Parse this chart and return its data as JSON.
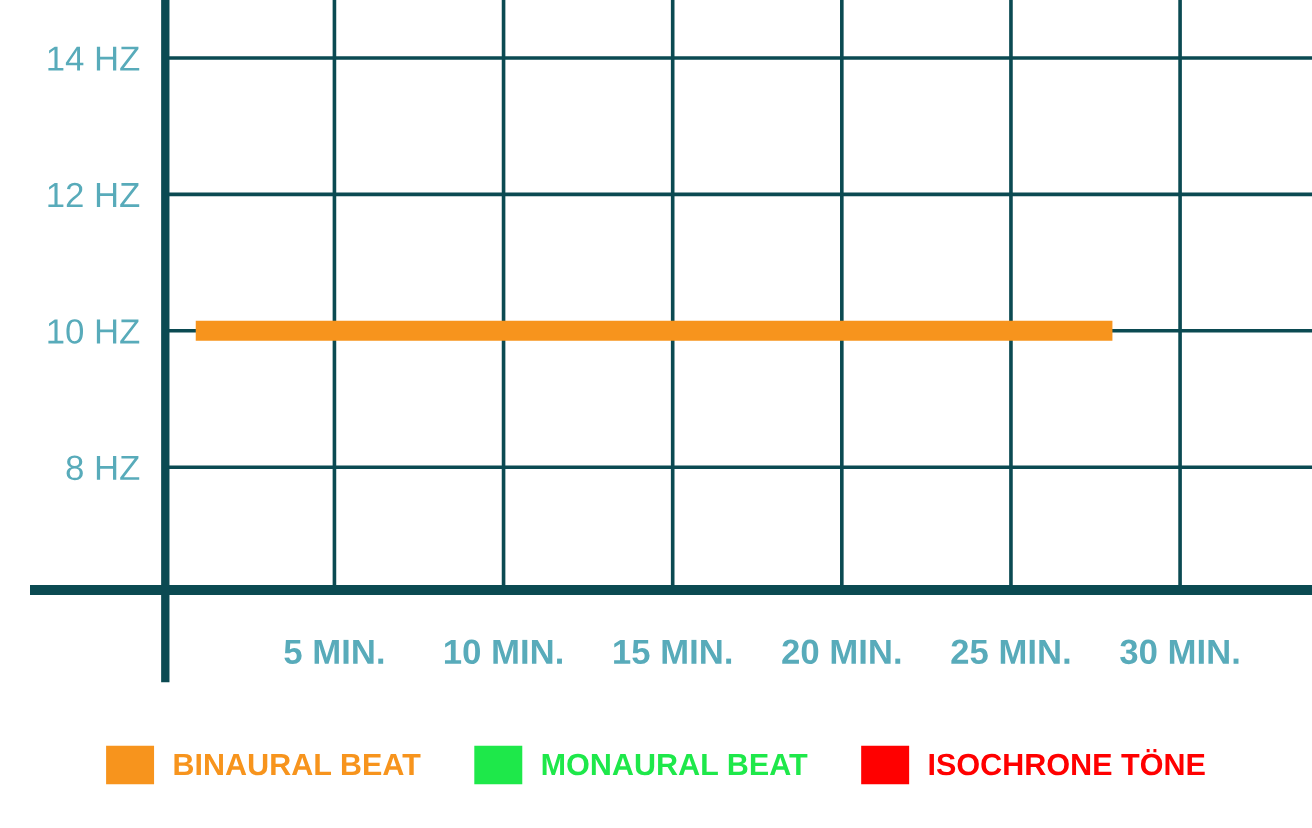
{
  "chart_data": {
    "type": "line",
    "xlim": [
      -4,
      33.9
    ],
    "ylim": [
      6.2,
      14.85
    ],
    "xticks": [
      {
        "value": 5,
        "label": "5 MIN."
      },
      {
        "value": 10,
        "label": "10 MIN."
      },
      {
        "value": 15,
        "label": "15 MIN."
      },
      {
        "value": 20,
        "label": "20 MIN."
      },
      {
        "value": 25,
        "label": "25 MIN."
      },
      {
        "value": 30,
        "label": "30 MIN."
      }
    ],
    "yticks": [
      {
        "value": 8,
        "label": "8 HZ"
      },
      {
        "value": 10,
        "label": "10 HZ"
      },
      {
        "value": 12,
        "label": "12 HZ"
      },
      {
        "value": 14,
        "label": "14 HZ"
      }
    ],
    "grid": true,
    "legend": "bottom",
    "series": [
      {
        "name": "BINAURAL BEAT",
        "color": "#f7941d",
        "x": [
          0.9,
          28
        ],
        "values": [
          10,
          10
        ]
      },
      {
        "name": "MONAURAL BEAT",
        "color": "#1ee84a"
      },
      {
        "name": "ISOCHRONE TÖNE",
        "color": "#ff0000"
      }
    ]
  }
}
